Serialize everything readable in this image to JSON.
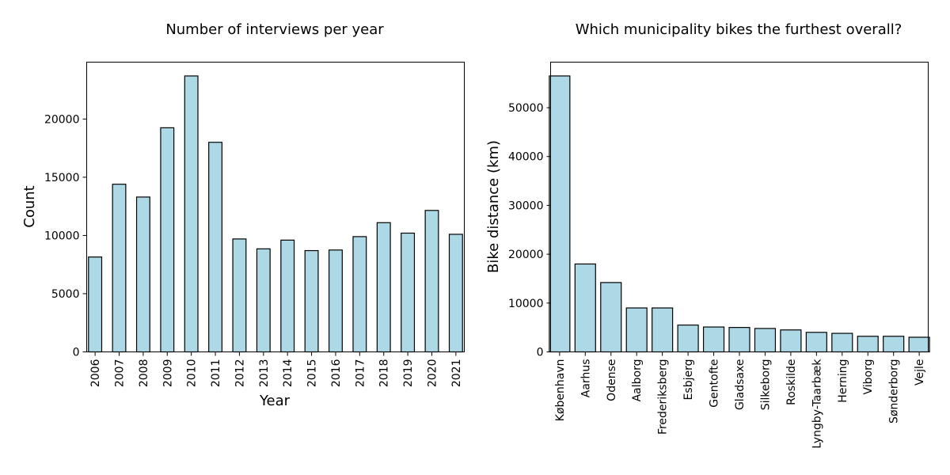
{
  "chart_data": [
    {
      "type": "bar",
      "title": "Number of interviews per year",
      "xlabel": "Year",
      "ylabel": "Count",
      "categories": [
        "2006",
        "2007",
        "2008",
        "2009",
        "2010",
        "2011",
        "2012",
        "2013",
        "2014",
        "2015",
        "2016",
        "2017",
        "2018",
        "2019",
        "2020",
        "2021"
      ],
      "values": [
        8150,
        14400,
        13300,
        19250,
        23700,
        18000,
        9700,
        8850,
        9600,
        8700,
        8750,
        9900,
        11100,
        10200,
        12150,
        10100
      ],
      "ylim": [
        0,
        24885
      ],
      "yticks": [
        0,
        5000,
        10000,
        15000,
        20000
      ],
      "bar_color": "#add8e6",
      "edge_color": "#000000",
      "grid": false
    },
    {
      "type": "bar",
      "title": "Which municipality bikes the furthest overall?",
      "xlabel": "",
      "ylabel": "Bike distance (km)",
      "categories": [
        "København",
        "Aarhus",
        "Odense",
        "Aalborg",
        "Frederiksberg",
        "Esbjerg",
        "Gentofte",
        "Gladsaxe",
        "Silkeborg",
        "Roskilde",
        "Lyngby-Taarbæk",
        "Herning",
        "Viborg",
        "Sønderborg",
        "Vejle"
      ],
      "values": [
        56500,
        18000,
        14200,
        9000,
        9000,
        5500,
        5100,
        5000,
        4800,
        4500,
        4000,
        3800,
        3200,
        3200,
        3000
      ],
      "ylim": [
        0,
        59325
      ],
      "yticks": [
        0,
        10000,
        20000,
        30000,
        40000,
        50000
      ],
      "bar_color": "#add8e6",
      "edge_color": "#000000",
      "grid": false
    }
  ]
}
